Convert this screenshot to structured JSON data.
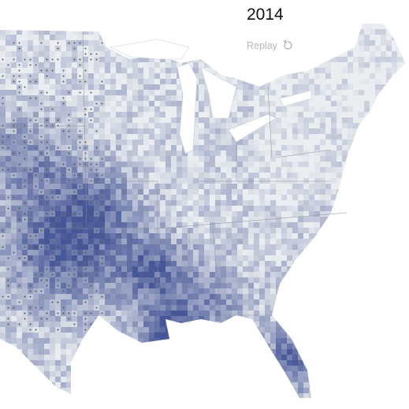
{
  "title": "2014",
  "replay": "Replay"
}
